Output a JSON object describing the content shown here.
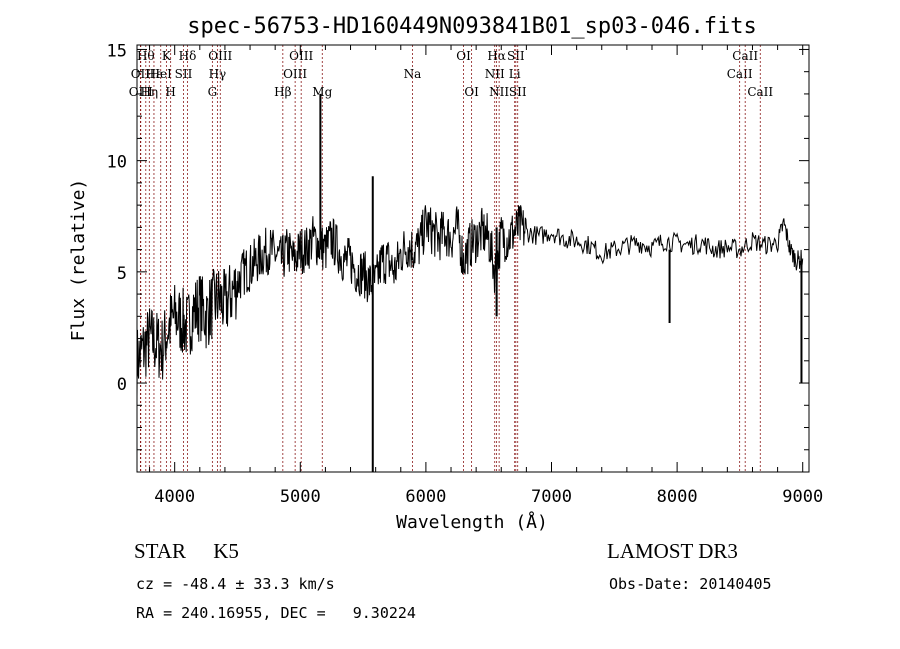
{
  "chart_data": {
    "type": "line",
    "title": "spec-56753-HD160449N093841B01_sp03-046.fits",
    "xlabel": "Wavelength (Å)",
    "ylabel": "Flux (relative)",
    "xlim": [
      3700,
      9050
    ],
    "ylim": [
      -4,
      15.2
    ],
    "xticks": [
      "4000",
      "5000",
      "6000",
      "7000",
      "8000",
      "9000"
    ],
    "yticks": [
      "0",
      "5",
      "10",
      "15"
    ],
    "xtick_values": [
      4000,
      5000,
      6000,
      7000,
      8000,
      9000
    ],
    "ytick_values": [
      0,
      5,
      10,
      15
    ],
    "grid": false,
    "series": [
      {
        "x": [
          3700,
          3750,
          3800,
          3850,
          3900,
          3950,
          4000,
          4050,
          4100,
          4150,
          4200,
          4250,
          4300,
          4350,
          4400,
          4450,
          4500,
          4550,
          4600,
          4650,
          4700,
          4750,
          4800,
          4850,
          4900,
          4950,
          5000,
          5050,
          5100,
          5150,
          5200,
          5250,
          5300,
          5350,
          5400,
          5450,
          5500,
          5550,
          5600,
          5650,
          5700,
          5750,
          5800,
          5850,
          5900,
          5950,
          6000,
          6050,
          6100,
          6150,
          6200,
          6250,
          6300,
          6350,
          6400,
          6450,
          6500,
          6550,
          6600,
          6650,
          6700,
          6750,
          6800,
          6900,
          7000,
          7100,
          7200,
          7300,
          7400,
          7500,
          7600,
          7700,
          7800,
          7900,
          8000,
          8100,
          8200,
          8300,
          8400,
          8500,
          8600,
          8700,
          8800,
          8850,
          8900,
          8950,
          9000
        ],
        "values": [
          1.0,
          1.5,
          2.0,
          1.8,
          1.5,
          2.5,
          3.0,
          2.8,
          2.5,
          3.2,
          3.5,
          3.0,
          3.5,
          3.8,
          3.5,
          4.0,
          4.5,
          5.0,
          5.2,
          5.5,
          5.8,
          6.0,
          5.8,
          5.5,
          6.0,
          5.5,
          6.0,
          6.0,
          6.5,
          6.2,
          6.0,
          6.5,
          6.0,
          5.5,
          5.5,
          5.0,
          5.0,
          4.5,
          4.5,
          5.5,
          5.5,
          5.0,
          5.8,
          6.2,
          6.0,
          6.2,
          7.2,
          6.8,
          6.5,
          6.8,
          6.5,
          7.0,
          5.5,
          6.2,
          6.5,
          6.8,
          6.5,
          5.0,
          6.6,
          6.5,
          6.8,
          7.0,
          6.8,
          6.6,
          6.8,
          6.5,
          6.4,
          6.2,
          5.8,
          6.0,
          6.2,
          6.3,
          6.1,
          6.4,
          6.3,
          6.2,
          6.3,
          6.0,
          6.1,
          6.0,
          6.4,
          6.2,
          6.3,
          7.2,
          6.0,
          5.5,
          5.6
        ]
      }
    ],
    "spikes": [
      {
        "x": 5577,
        "values": [
          9.3,
          -4.5
        ]
      },
      {
        "x": 5160,
        "values": [
          13.0,
          6.0
        ]
      },
      {
        "x": 7940,
        "values": [
          6.0,
          2.7
        ]
      },
      {
        "x": 8990,
        "values": [
          5.5,
          0.0
        ]
      },
      {
        "x": 6563,
        "values": [
          7.0,
          3.0
        ]
      }
    ],
    "lines": [
      {
        "x": 3727,
        "label": "OII",
        "row": 1
      },
      {
        "x": 3730,
        "label": "OIII",
        "row": 2
      },
      {
        "x": 3770,
        "label": "Hθ",
        "row": 0
      },
      {
        "x": 3798,
        "label": "Hη",
        "row": 2
      },
      {
        "x": 3835,
        "label": "Hε",
        "row": 1
      },
      {
        "x": 3889,
        "label": "HeI",
        "row": 1
      },
      {
        "x": 3934,
        "label": "K",
        "row": 0
      },
      {
        "x": 3968,
        "label": "H",
        "row": 2
      },
      {
        "x": 4070,
        "label": "SII",
        "row": 1
      },
      {
        "x": 4102,
        "label": "Hδ",
        "row": 0
      },
      {
        "x": 4300,
        "label": "G",
        "row": 2
      },
      {
        "x": 4340,
        "label": "Hγ",
        "row": 1
      },
      {
        "x": 4363,
        "label": "OIII",
        "row": 0
      },
      {
        "x": 4861,
        "label": "Hβ",
        "row": 2
      },
      {
        "x": 4959,
        "label": "OIII",
        "row": 1
      },
      {
        "x": 5007,
        "label": "OIII",
        "row": 0
      },
      {
        "x": 5175,
        "label": "Mg",
        "row": 2
      },
      {
        "x": 5893,
        "label": "Na",
        "row": 1
      },
      {
        "x": 6300,
        "label": "OI",
        "row": 0
      },
      {
        "x": 6364,
        "label": "OI",
        "row": 2
      },
      {
        "x": 6548,
        "label": "NII",
        "row": 1
      },
      {
        "x": 6563,
        "label": "Hα",
        "row": 0
      },
      {
        "x": 6583,
        "label": "NII",
        "row": 2
      },
      {
        "x": 6707,
        "label": "Li",
        "row": 1
      },
      {
        "x": 6716,
        "label": "SII",
        "row": 0
      },
      {
        "x": 6731,
        "label": "SII",
        "row": 2
      },
      {
        "x": 8498,
        "label": "CaII",
        "row": 1
      },
      {
        "x": 8542,
        "label": "CaII",
        "row": 0
      },
      {
        "x": 8662,
        "label": "CaII",
        "row": 2
      }
    ]
  },
  "info": {
    "object_class": "STAR",
    "subclass": "K5",
    "survey": "LAMOST DR3",
    "cz": "cz = -48.4 ± 33.3 km/s",
    "obs_date": "Obs-Date: 20140405",
    "coords": "RA = 240.16955, DEC =   9.30224"
  }
}
